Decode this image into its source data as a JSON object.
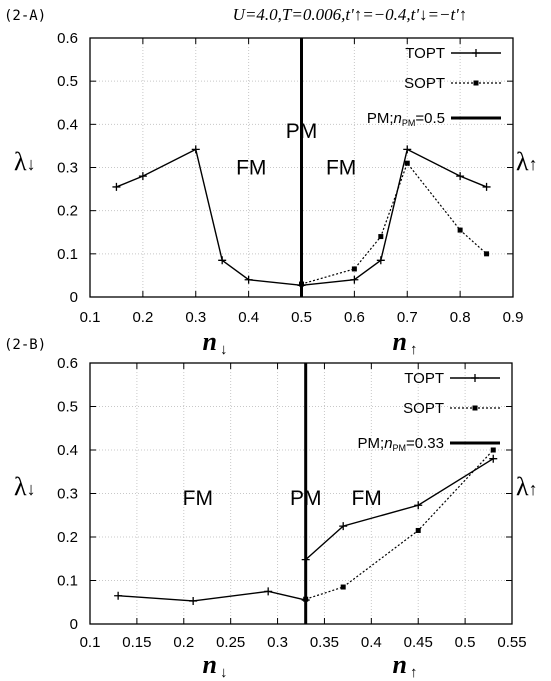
{
  "chart_data": [
    {
      "type": "line",
      "panel_label": "(2-A)",
      "title": "U=4.0,T=0.006,t'↑=−0.4,t'↓=−t'↑",
      "xlabel_left": "n↓",
      "xlabel_right": "n↑",
      "ylabel_left": "λ↓",
      "ylabel_right": "λ↑",
      "xlim": [
        0.1,
        0.9
      ],
      "ylim": [
        0,
        0.6
      ],
      "xticks": [
        "0.1",
        "0.2",
        "0.3",
        "0.4",
        "0.5",
        "0.6",
        "0.7",
        "0.8",
        "0.9"
      ],
      "yticks": [
        "0",
        "0.1",
        "0.2",
        "0.3",
        "0.4",
        "0.5",
        "0.6"
      ],
      "grid": true,
      "legend_position": "top-right",
      "legend": [
        "TOPT",
        "SOPT",
        "PM;nPM=0.5"
      ],
      "regions": [
        {
          "label": "FM",
          "x": 0.405,
          "y": 0.3
        },
        {
          "label": "PM",
          "x": 0.5,
          "y": 0.385
        },
        {
          "label": "FM",
          "x": 0.575,
          "y": 0.3
        }
      ],
      "series": [
        {
          "name": "TOPT",
          "style": "solid",
          "marker": "plus",
          "x": [
            0.15,
            0.2,
            0.3,
            0.35,
            0.4,
            0.5,
            0.6,
            0.65,
            0.7,
            0.8,
            0.85
          ],
          "y": [
            0.255,
            0.28,
            0.342,
            0.085,
            0.04,
            0.027,
            0.04,
            0.085,
            0.342,
            0.28,
            0.255
          ]
        },
        {
          "name": "SOPT",
          "style": "dotted",
          "marker": "square",
          "x": [
            0.5,
            0.6,
            0.65,
            0.7,
            0.8,
            0.85
          ],
          "y": [
            0.03,
            0.065,
            0.14,
            0.31,
            0.155,
            0.1
          ]
        }
      ],
      "vline": {
        "name": "PM;nPM=0.5",
        "x": 0.5
      }
    },
    {
      "type": "line",
      "panel_label": "(2-B)",
      "xlabel_left": "n↓",
      "xlabel_right": "n↑",
      "ylabel_left": "λ↓",
      "ylabel_right": "λ↑",
      "xlim": [
        0.1,
        0.55
      ],
      "ylim": [
        0,
        0.6
      ],
      "xticks": [
        "0.1",
        "0.15",
        "0.2",
        "0.25",
        "0.3",
        "0.35",
        "0.4",
        "0.45",
        "0.5",
        "0.55"
      ],
      "yticks": [
        "0",
        "0.1",
        "0.2",
        "0.3",
        "0.4",
        "0.5",
        "0.6"
      ],
      "grid": true,
      "legend_position": "top-right",
      "legend": [
        "TOPT",
        "SOPT",
        "PM;nPM=0.33"
      ],
      "regions": [
        {
          "label": "FM",
          "x": 0.215,
          "y": 0.29
        },
        {
          "label": "PM",
          "x": 0.33,
          "y": 0.29
        },
        {
          "label": "FM",
          "x": 0.395,
          "y": 0.29
        }
      ],
      "series": [
        {
          "name": "TOPT",
          "style": "solid",
          "marker": "plus",
          "x": [
            0.13,
            0.21,
            0.29,
            0.33
          ],
          "y": [
            0.065,
            0.053,
            0.075,
            0.055
          ]
        },
        {
          "name": "TOPT",
          "style": "solid",
          "marker": "plus",
          "x": [
            0.33,
            0.37,
            0.45,
            0.53
          ],
          "y": [
            0.148,
            0.225,
            0.273,
            0.38
          ]
        },
        {
          "name": "SOPT",
          "style": "dotted",
          "marker": "square",
          "x": [
            0.33,
            0.37,
            0.45,
            0.53
          ],
          "y": [
            0.057,
            0.085,
            0.215,
            0.4
          ]
        }
      ],
      "vline": {
        "name": "PM;nPM=0.33",
        "x": 0.33
      }
    }
  ]
}
